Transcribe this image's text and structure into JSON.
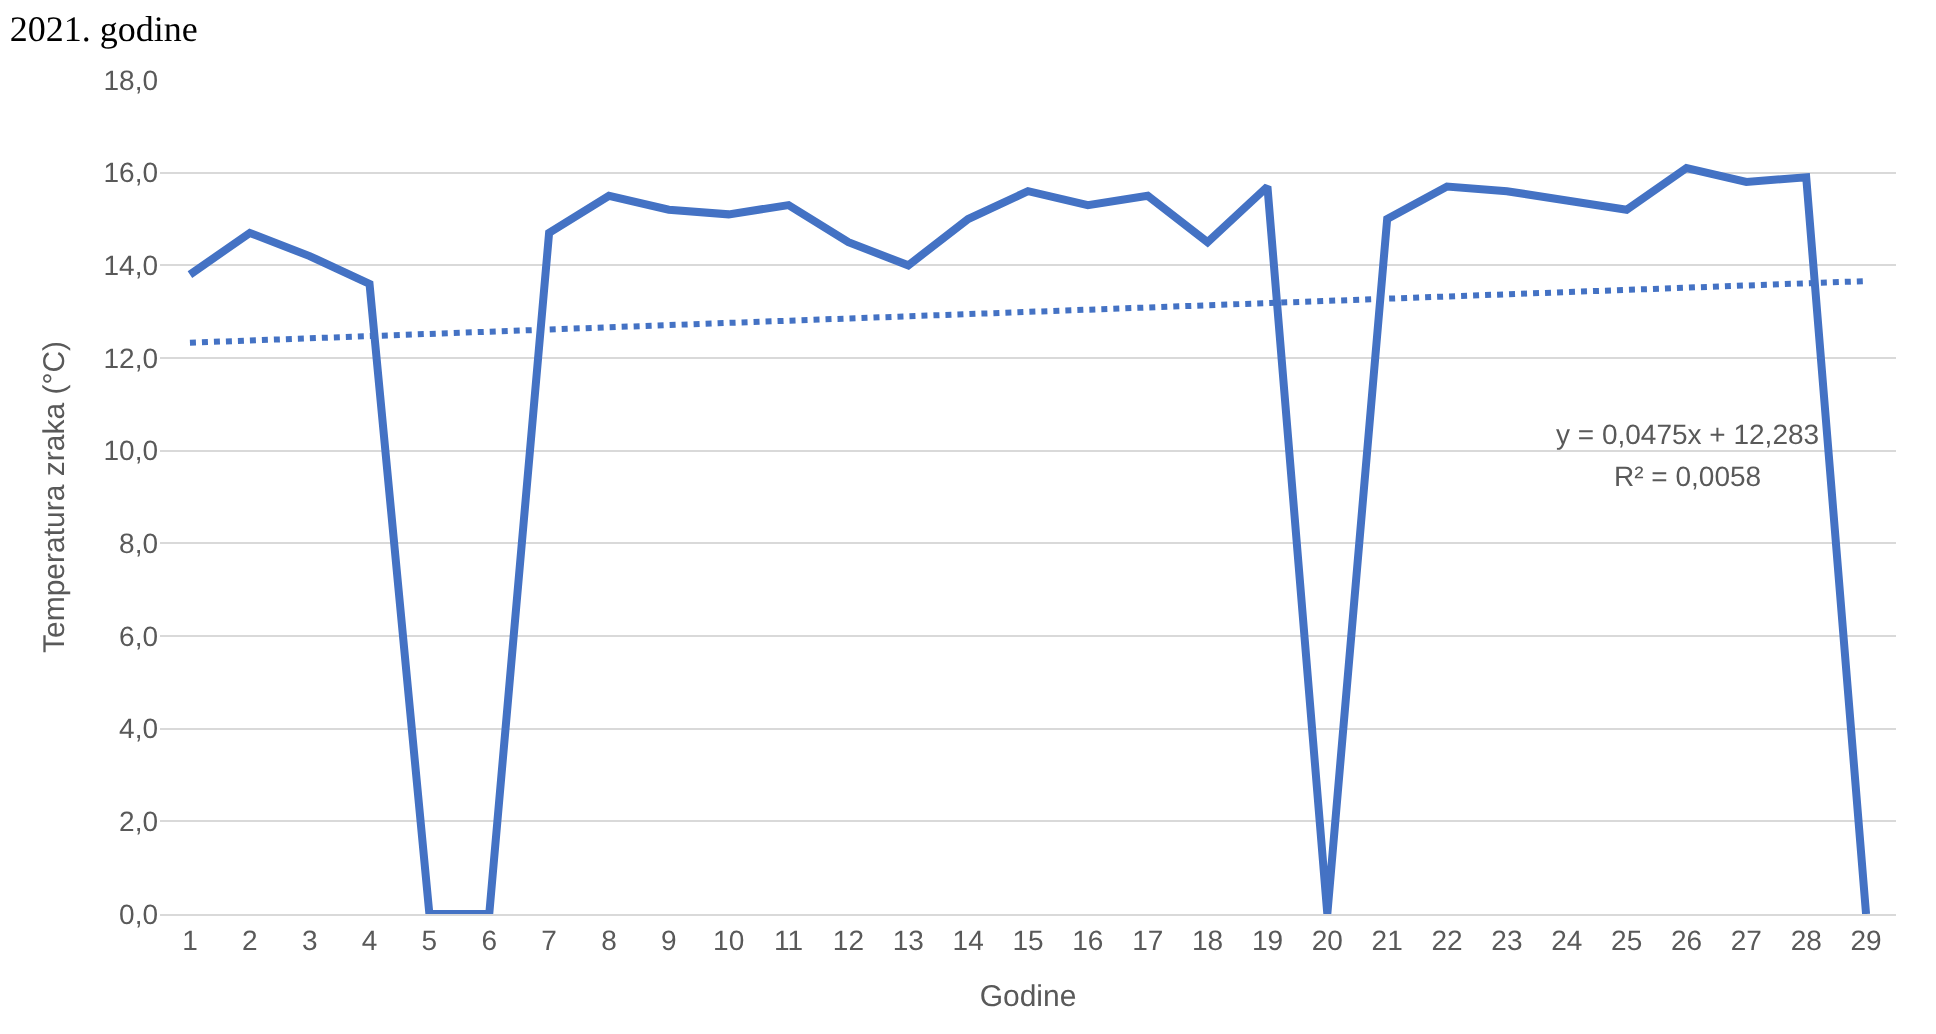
{
  "chart_data": {
    "type": "line",
    "title": "2021. godine",
    "xlabel": "Godine",
    "ylabel": "Temperatura zraka (°C)",
    "x": [
      1,
      2,
      3,
      4,
      5,
      6,
      7,
      8,
      9,
      10,
      11,
      12,
      13,
      14,
      15,
      16,
      17,
      18,
      19,
      20,
      21,
      22,
      23,
      24,
      25,
      26,
      27,
      28,
      29
    ],
    "xlim": [
      0.5,
      29.5
    ],
    "xticks": [
      1,
      2,
      3,
      4,
      5,
      6,
      7,
      8,
      9,
      10,
      11,
      12,
      13,
      14,
      15,
      16,
      17,
      18,
      19,
      20,
      21,
      22,
      23,
      24,
      25,
      26,
      27,
      28,
      29
    ],
    "ylim": [
      0,
      18
    ],
    "yticks": [
      {
        "value": 0,
        "label": "0,0"
      },
      {
        "value": 2,
        "label": "2,0"
      },
      {
        "value": 4,
        "label": "4,0"
      },
      {
        "value": 6,
        "label": "6,0"
      },
      {
        "value": 8,
        "label": "8,0"
      },
      {
        "value": 10,
        "label": "10,0"
      },
      {
        "value": 12,
        "label": "12,0"
      },
      {
        "value": 14,
        "label": "14,0"
      },
      {
        "value": 16,
        "label": "16,0"
      },
      {
        "value": 18,
        "label": "18,0"
      }
    ],
    "grid": "y",
    "marker": "none",
    "series": [
      {
        "color": "#4472c4",
        "line_style": "solid",
        "values": [
          13.8,
          14.7,
          14.2,
          13.6,
          0,
          0,
          14.7,
          15.5,
          15.2,
          15.1,
          15.3,
          14.5,
          14.0,
          15.0,
          15.6,
          15.3,
          15.5,
          14.5,
          15.7,
          0,
          15.0,
          15.7,
          15.6,
          15.4,
          15.2,
          16.1,
          15.8,
          15.9,
          0
        ]
      },
      {
        "color": "#4472c4",
        "line_style": "dotted",
        "x": [
          1,
          29
        ],
        "values": [
          12.33,
          13.66
        ]
      }
    ],
    "annotations": [
      "y = 0,0475x + 12,283",
      "R² = 0,0058"
    ]
  }
}
